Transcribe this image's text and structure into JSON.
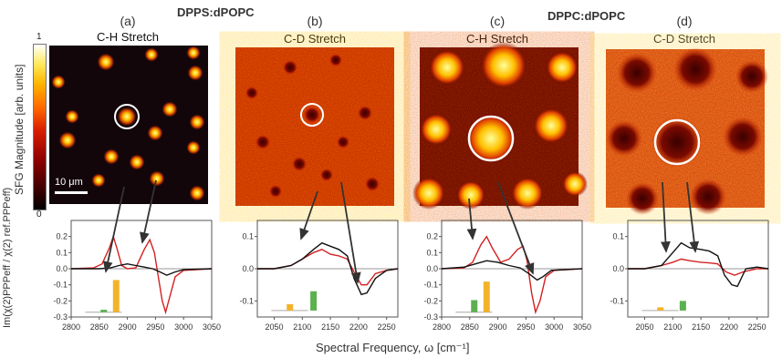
{
  "group_labels": [
    "DPPS:dPOPC",
    "DPPC:dPOPC"
  ],
  "colorbar": {
    "label": "SFG Magnitude [arb. units]",
    "max": "1",
    "min": "0"
  },
  "scale_bar": "10 μm",
  "y_axis_label": "Im(χ(2)PPPeff / χ(2) ref.PPPeff)",
  "x_axis_label": "Spectral Frequency, ω [cm⁻¹]",
  "panels": [
    {
      "letter": "(a)",
      "title": "C-H Stretch"
    },
    {
      "letter": "(b)",
      "title": "C-D Stretch"
    },
    {
      "letter": "(c)",
      "title": "C-H Stretch"
    },
    {
      "letter": "(d)",
      "title": "C-D Stretch"
    }
  ],
  "chart_data": [
    {
      "type": "line",
      "xlim": [
        2800,
        3050
      ],
      "ylim": [
        -0.3,
        0.3
      ],
      "xticks": [
        "2800",
        "2850",
        "2900",
        "2950",
        "3000",
        "3050"
      ],
      "yticks": [
        "0.2",
        "0.1",
        "0.0",
        "-0.1",
        "-0.2",
        "-0.3"
      ],
      "series": [
        {
          "color": "#d42020",
          "points": [
            [
              2800,
              0
            ],
            [
              2840,
              0.005
            ],
            [
              2855,
              0.03
            ],
            [
              2868,
              0.13
            ],
            [
              2875,
              0.2
            ],
            [
              2882,
              0.12
            ],
            [
              2890,
              0.02
            ],
            [
              2900,
              0
            ],
            [
              2915,
              0.005
            ],
            [
              2930,
              0.12
            ],
            [
              2940,
              0.18
            ],
            [
              2948,
              0.1
            ],
            [
              2955,
              -0.05
            ],
            [
              2962,
              -0.2
            ],
            [
              2968,
              -0.27
            ],
            [
              2975,
              -0.18
            ],
            [
              2985,
              -0.05
            ],
            [
              3000,
              -0.01
            ],
            [
              3050,
              0
            ]
          ]
        },
        {
          "color": "#111111",
          "points": [
            [
              2800,
              0
            ],
            [
              2850,
              0
            ],
            [
              2870,
              0.005
            ],
            [
              2885,
              0.02
            ],
            [
              2900,
              0.03
            ],
            [
              2915,
              0.02
            ],
            [
              2930,
              0.01
            ],
            [
              2945,
              0
            ],
            [
              2958,
              -0.02
            ],
            [
              2970,
              -0.04
            ],
            [
              2985,
              -0.02
            ],
            [
              3000,
              -0.005
            ],
            [
              3050,
              0
            ]
          ]
        }
      ],
      "bars": [
        {
          "x": 2858,
          "value": -0.255,
          "color": "#5bb04f"
        },
        {
          "x": 2880,
          "value": -0.07,
          "color": "#f3b329"
        }
      ],
      "bar_base": -0.27
    },
    {
      "type": "line",
      "xlim": [
        2020,
        2270
      ],
      "ylim": [
        -0.15,
        0.15
      ],
      "xticks": [
        "2050",
        "2100",
        "2150",
        "2200",
        "2250"
      ],
      "yticks": [
        "0.1",
        "0.0",
        "-0.1"
      ],
      "series": [
        {
          "color": "#d42020",
          "points": [
            [
              2020,
              0
            ],
            [
              2050,
              0
            ],
            [
              2080,
              0.01
            ],
            [
              2100,
              0.03
            ],
            [
              2120,
              0.05
            ],
            [
              2135,
              0.06
            ],
            [
              2150,
              0.045
            ],
            [
              2165,
              0.04
            ],
            [
              2180,
              0.03
            ],
            [
              2195,
              -0.02
            ],
            [
              2205,
              -0.05
            ],
            [
              2215,
              -0.05
            ],
            [
              2230,
              -0.015
            ],
            [
              2250,
              -0.005
            ],
            [
              2270,
              0
            ]
          ]
        },
        {
          "color": "#111111",
          "points": [
            [
              2020,
              0
            ],
            [
              2050,
              0
            ],
            [
              2080,
              0.01
            ],
            [
              2100,
              0.03
            ],
            [
              2120,
              0.06
            ],
            [
              2135,
              0.08
            ],
            [
              2150,
              0.07
            ],
            [
              2165,
              0.06
            ],
            [
              2180,
              0.04
            ],
            [
              2192,
              -0.03
            ],
            [
              2205,
              -0.08
            ],
            [
              2215,
              -0.075
            ],
            [
              2230,
              -0.03
            ],
            [
              2250,
              -0.005
            ],
            [
              2270,
              0
            ]
          ]
        }
      ],
      "bars": [
        {
          "x": 2078,
          "value": -0.11,
          "color": "#f3b329"
        },
        {
          "x": 2120,
          "value": -0.07,
          "color": "#5bb04f"
        }
      ],
      "bar_base": -0.13
    },
    {
      "type": "line",
      "xlim": [
        2800,
        3050
      ],
      "ylim": [
        -0.3,
        0.3
      ],
      "xticks": [
        "2800",
        "2850",
        "2900",
        "2950",
        "3000",
        "3050"
      ],
      "yticks": [
        "0.2",
        "0.1",
        "0.0",
        "-0.1",
        "-0.2",
        "-0.3"
      ],
      "series": [
        {
          "color": "#d42020",
          "points": [
            [
              2800,
              0
            ],
            [
              2840,
              0.005
            ],
            [
              2855,
              0.04
            ],
            [
              2870,
              0.15
            ],
            [
              2880,
              0.2
            ],
            [
              2890,
              0.13
            ],
            [
              2905,
              0.04
            ],
            [
              2920,
              0.06
            ],
            [
              2935,
              0.12
            ],
            [
              2945,
              0.14
            ],
            [
              2952,
              0.05
            ],
            [
              2960,
              -0.15
            ],
            [
              2967,
              -0.27
            ],
            [
              2975,
              -0.2
            ],
            [
              2985,
              -0.05
            ],
            [
              3000,
              -0.01
            ],
            [
              3050,
              0
            ]
          ]
        },
        {
          "color": "#111111",
          "points": [
            [
              2800,
              0
            ],
            [
              2840,
              0.01
            ],
            [
              2860,
              0.03
            ],
            [
              2880,
              0.05
            ],
            [
              2900,
              0.04
            ],
            [
              2920,
              0.02
            ],
            [
              2940,
              0.005
            ],
            [
              2955,
              -0.03
            ],
            [
              2970,
              -0.07
            ],
            [
              2980,
              -0.05
            ],
            [
              2995,
              -0.01
            ],
            [
              3050,
              0
            ]
          ]
        }
      ],
      "bars": [
        {
          "x": 2858,
          "value": -0.195,
          "color": "#5bb04f"
        },
        {
          "x": 2880,
          "value": -0.08,
          "color": "#f3b329"
        }
      ],
      "bar_base": -0.27
    },
    {
      "type": "line",
      "xlim": [
        2020,
        2270
      ],
      "ylim": [
        -0.15,
        0.15
      ],
      "xticks": [
        "2050",
        "2100",
        "2150",
        "2200",
        "2250"
      ],
      "yticks": [
        "0.1",
        "0.0",
        "-0.1"
      ],
      "series": [
        {
          "color": "#d42020",
          "points": [
            [
              2020,
              0
            ],
            [
              2050,
              0
            ],
            [
              2080,
              0.01
            ],
            [
              2100,
              0.02
            ],
            [
              2115,
              0.03
            ],
            [
              2130,
              0.025
            ],
            [
              2150,
              0.02
            ],
            [
              2165,
              0.018
            ],
            [
              2180,
              0.015
            ],
            [
              2195,
              -0.01
            ],
            [
              2210,
              -0.02
            ],
            [
              2225,
              -0.01
            ],
            [
              2250,
              0
            ],
            [
              2270,
              0
            ]
          ]
        },
        {
          "color": "#111111",
          "points": [
            [
              2020,
              0
            ],
            [
              2050,
              0
            ],
            [
              2080,
              0.01
            ],
            [
              2100,
              0.05
            ],
            [
              2115,
              0.08
            ],
            [
              2130,
              0.065
            ],
            [
              2150,
              0.06
            ],
            [
              2165,
              0.055
            ],
            [
              2180,
              0.04
            ],
            [
              2192,
              -0.02
            ],
            [
              2205,
              -0.05
            ],
            [
              2215,
              -0.055
            ],
            [
              2230,
              0
            ],
            [
              2250,
              0.005
            ],
            [
              2270,
              0
            ]
          ]
        }
      ],
      "bars": [
        {
          "x": 2078,
          "value": -0.12,
          "color": "#f3b329"
        },
        {
          "x": 2118,
          "value": -0.1,
          "color": "#5bb04f"
        }
      ],
      "bar_base": -0.13
    }
  ]
}
